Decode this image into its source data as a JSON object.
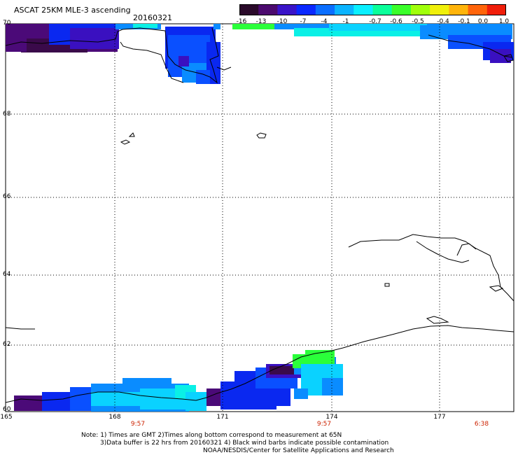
{
  "header": {
    "title": "ASCAT 25KM MLE-3 ascending",
    "date": "20160321"
  },
  "colorbar": {
    "labels": [
      "-16",
      "-13",
      "-10",
      "-7",
      "-4",
      "-1",
      "-0.7",
      "-0.6",
      "-0.5",
      "-0.4",
      "-0.1",
      "0.0",
      "1.0"
    ],
    "colors": [
      "#2a0a2a",
      "#4b0a6e",
      "#3a14c8",
      "#0a28ff",
      "#0a6eff",
      "#0ab4ff",
      "#0af0ff",
      "#0aff9a",
      "#3aff2a",
      "#a0ff0a",
      "#f0f00a",
      "#ffb40a",
      "#ff640a",
      "#f01e0a"
    ]
  },
  "map": {
    "latitudes": [
      "70",
      "68",
      "66",
      "64",
      "62",
      "60"
    ],
    "longitudes": [
      "165",
      "168",
      "171",
      "174",
      "177"
    ],
    "pass_times": [
      "9:57",
      "9:57",
      "6:38"
    ],
    "colors": {
      "dark_purple": "#3a0a4a",
      "purple": "#4b0a78",
      "indigo": "#3a10c0",
      "blue": "#0a28f0",
      "blue2": "#0a50ff",
      "sky": "#0a8cff",
      "cyan": "#0ad2ff",
      "aqua": "#0af0e6",
      "green": "#2aff3a",
      "coast": "#000000"
    }
  },
  "notes": {
    "line1": "Note: 1) Times are GMT 2)Times along bottom correspond to measurement at 65N",
    "line2": "3)Data buffer is 22 hrs from 20160321 4) Black wind barbs indicate possible contamination",
    "line3": "NOAA/NESDIS/Center for Satellite Applications and Research"
  }
}
